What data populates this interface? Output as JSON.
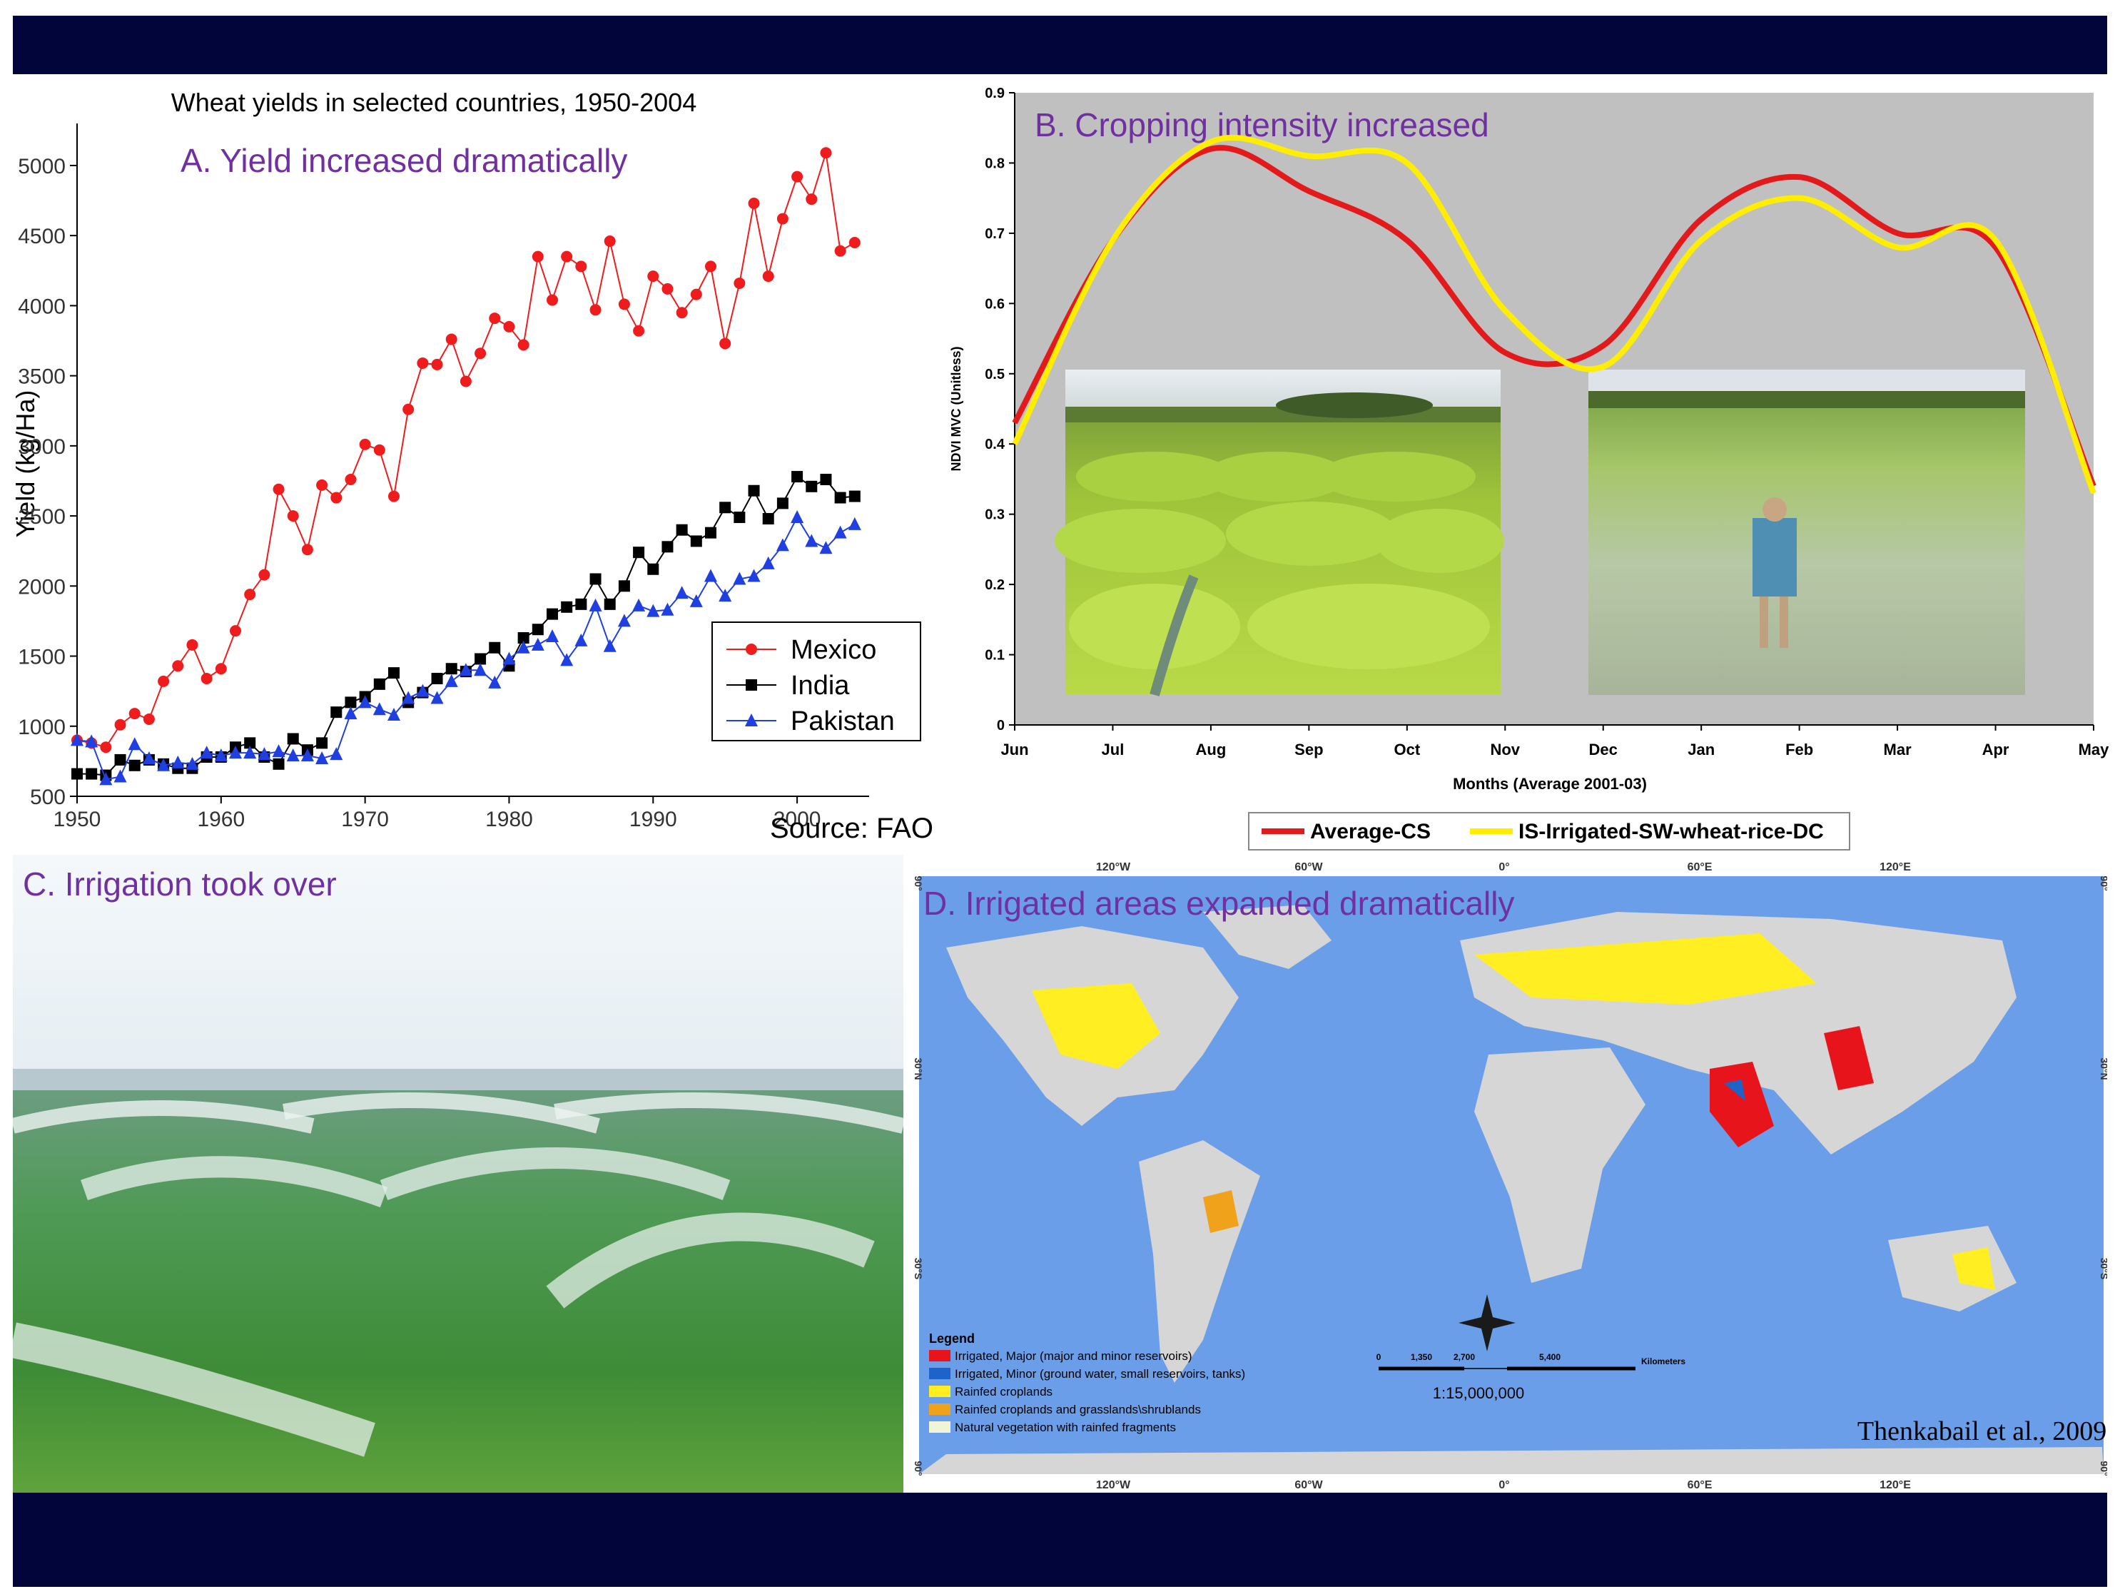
{
  "colors": {
    "band": "#02053a",
    "panel_title": "#7030a0",
    "mexico": "#ee1c1c",
    "india": "#000000",
    "pakistan": "#1f3fe0",
    "average_cs": "#e31a1c",
    "irrigated_dc": "#ffee00",
    "plot_bg_b": "#c0c0c0",
    "ocean": "#6b9ee8",
    "land": "#d6d6d6",
    "irrigated_major": "#e8141c",
    "irrigated_minor": "#1e64c8",
    "rainfed": "#ffee22",
    "rainfed_grass": "#f0a21a",
    "natural_veg": "#f0f5d8"
  },
  "panelA": {
    "heading": "A. Yield increased dramatically",
    "source": "Source:  FAO",
    "chart_data": {
      "type": "line",
      "title": "Wheat yields in selected countries, 1950-2004",
      "ylabel": "Yield (kg/Ha)",
      "xlabel": "",
      "xlim": [
        1950,
        2005
      ],
      "ylim": [
        500,
        5300
      ],
      "xticks": [
        1950,
        1960,
        1970,
        1980,
        1990,
        2000
      ],
      "yticks": [
        500,
        1000,
        1500,
        2000,
        2500,
        3000,
        3500,
        4000,
        4500,
        5000
      ],
      "legend_position": "bottom-right",
      "x_start": 1950,
      "series": [
        {
          "name": "Mexico",
          "marker": "circle",
          "values": [
            900,
            880,
            850,
            1010,
            1090,
            1050,
            1320,
            1430,
            1580,
            1340,
            1410,
            1680,
            1940,
            2080,
            2690,
            2500,
            2260,
            2720,
            2630,
            2760,
            3010,
            2970,
            2640,
            3260,
            3590,
            3580,
            3760,
            3460,
            3660,
            3910,
            3850,
            3720,
            4350,
            4040,
            4350,
            4280,
            3970,
            4460,
            4010,
            3820,
            4210,
            4120,
            3950,
            4080,
            4280,
            3730,
            4160,
            4730,
            4210,
            4620,
            4920,
            4760,
            5090,
            4390,
            4450
          ]
        },
        {
          "name": "India",
          "marker": "square",
          "values": [
            660,
            660,
            650,
            760,
            720,
            760,
            730,
            700,
            700,
            780,
            780,
            850,
            880,
            780,
            730,
            910,
            830,
            880,
            1100,
            1170,
            1210,
            1300,
            1380,
            1170,
            1240,
            1340,
            1410,
            1390,
            1480,
            1560,
            1430,
            1630,
            1690,
            1800,
            1850,
            1870,
            2050,
            1870,
            2000,
            2240,
            2120,
            2280,
            2400,
            2320,
            2380,
            2560,
            2490,
            2680,
            2480,
            2590,
            2780,
            2710,
            2760,
            2630,
            2640
          ]
        },
        {
          "name": "Pakistan",
          "marker": "triangle",
          "values": [
            900,
            890,
            620,
            640,
            870,
            770,
            720,
            740,
            730,
            810,
            790,
            810,
            810,
            800,
            820,
            790,
            790,
            770,
            800,
            1090,
            1170,
            1120,
            1080,
            1200,
            1250,
            1200,
            1320,
            1400,
            1400,
            1310,
            1480,
            1560,
            1580,
            1640,
            1470,
            1610,
            1860,
            1570,
            1750,
            1860,
            1820,
            1830,
            1950,
            1890,
            2070,
            1930,
            2050,
            2070,
            2160,
            2290,
            2490,
            2320,
            2270,
            2380,
            2440
          ]
        }
      ]
    }
  },
  "panelB": {
    "heading": "B. Cropping intensity increased",
    "chart_data": {
      "type": "line",
      "title": "",
      "ylabel": "NDVI MVC (Unitless)",
      "xlabel": "Months (Average 2001-03)",
      "ylim": [
        0,
        0.9
      ],
      "yticks": [
        0,
        0.1,
        0.2,
        0.3,
        0.4,
        0.5,
        0.6,
        0.7,
        0.8,
        0.9
      ],
      "categories": [
        "Jun",
        "Jul",
        "Aug",
        "Sep",
        "Oct",
        "Nov",
        "Dec",
        "Jan",
        "Feb",
        "Mar",
        "Apr",
        "May"
      ],
      "legend_position": "bottom",
      "grid": false,
      "series": [
        {
          "name": "Average-CS",
          "values": [
            0.43,
            0.69,
            0.82,
            0.76,
            0.69,
            0.53,
            0.54,
            0.72,
            0.78,
            0.7,
            0.68,
            0.34
          ]
        },
        {
          "name": "IS-Irrigated-SW-wheat-rice-DC",
          "values": [
            0.4,
            0.69,
            0.83,
            0.81,
            0.8,
            0.59,
            0.51,
            0.69,
            0.75,
            0.68,
            0.69,
            0.33
          ]
        }
      ]
    }
  },
  "panelC": {
    "heading": "C. Irrigation took over"
  },
  "panelD": {
    "heading": "D. Irrigated areas expanded dramatically",
    "top_lon_labels": [
      "120°W",
      "60°W",
      "0°",
      "60°E",
      "120°E"
    ],
    "bottom_lon_labels": [
      "120°W",
      "60°W",
      "0°",
      "60°E",
      "120°E"
    ],
    "lat_labels_left": [
      "90°",
      "30°N",
      "30°S",
      "90°"
    ],
    "lat_labels_right": [
      "90°",
      "30°N",
      "30°S",
      "90°"
    ],
    "legend_title": "Legend",
    "legend_items": [
      "Irrigated, Major (major and minor reservoirs)",
      "Irrigated, Minor (ground water, small reservoirs, tanks)",
      "Rainfed croplands",
      "Rainfed croplands and grasslands\\shrublands",
      "Natural vegetation with rainfed fragments"
    ],
    "scale_ticks": [
      "0",
      "1,350",
      "2,700",
      "5,400"
    ],
    "scale_unit": "Kilometers",
    "scale_ratio": "1:15,000,000",
    "citation": "Thenkabail et al., 2009a"
  }
}
